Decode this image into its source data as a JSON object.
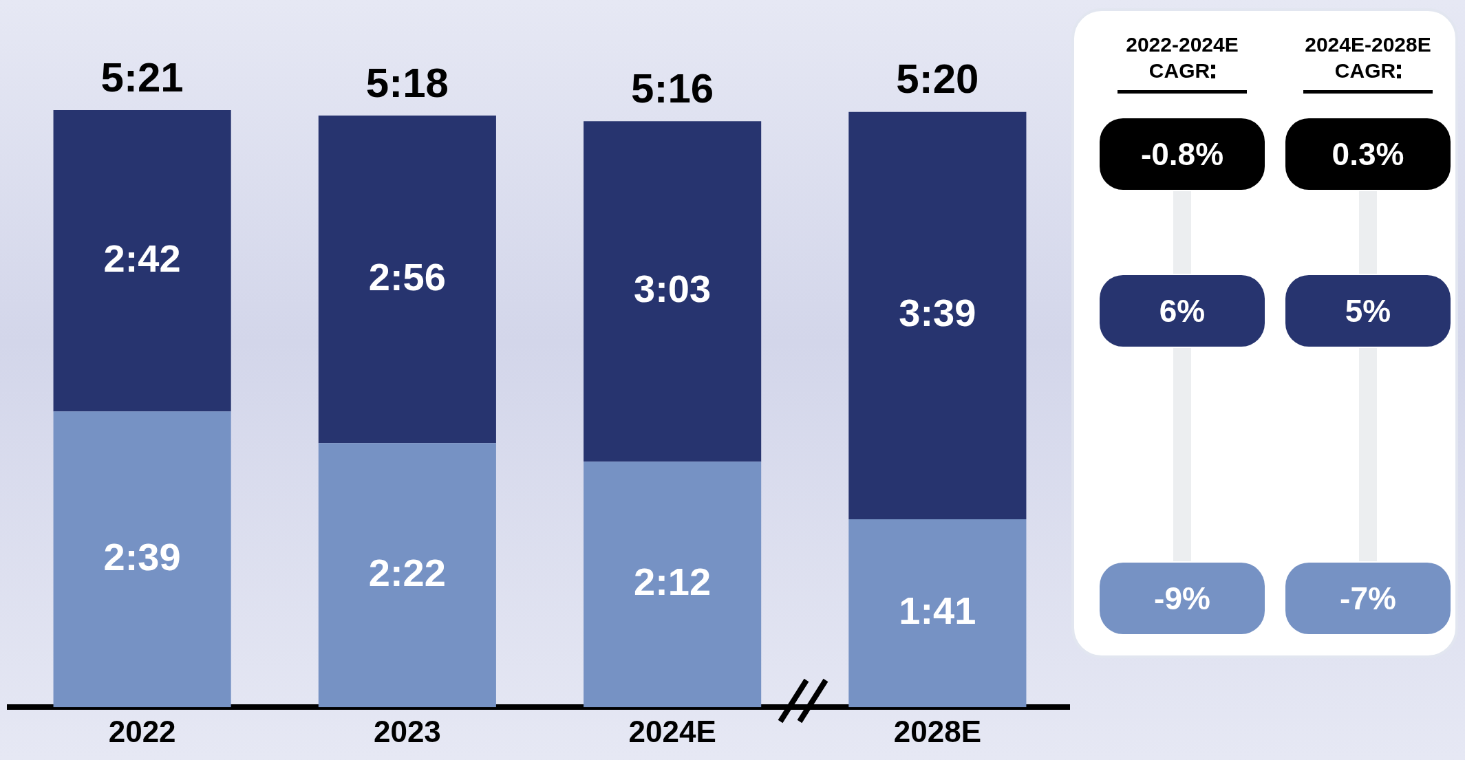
{
  "chart_data": [
    {
      "type": "bar",
      "stacked": true,
      "tick_labels": "x",
      "categories": [
        "2022",
        "2023",
        "2024E",
        "2028E"
      ],
      "series": [
        {
          "color": "#7692c4",
          "values": [
            159,
            142,
            132,
            101
          ],
          "value_labels": [
            "2:39",
            "2:22",
            "2:12",
            "1:41"
          ]
        },
        {
          "color": "#27346f",
          "values": [
            162,
            176,
            183,
            219
          ],
          "value_labels": [
            "2:42",
            "2:56",
            "3:03",
            "3:39"
          ]
        }
      ],
      "totals": [
        "5:21",
        "5:18",
        "5:16",
        "5:20"
      ],
      "grid": false,
      "legend": false
    },
    {
      "type": "other",
      "categories": [
        "2022-2024E CAGR",
        "2024E-2028E CAGR"
      ],
      "series": [
        {
          "color": "#000000",
          "values": [
            -0.8,
            0.3
          ],
          "value_labels": [
            "-0.8%",
            "0.3%"
          ]
        },
        {
          "color": "#27346f",
          "values": [
            6,
            5
          ],
          "value_labels": [
            "6%",
            "5%"
          ]
        },
        {
          "color": "#7692c4",
          "values": [
            -9,
            -7
          ],
          "value_labels": [
            "-9%",
            "-7%"
          ]
        }
      ]
    }
  ]
}
